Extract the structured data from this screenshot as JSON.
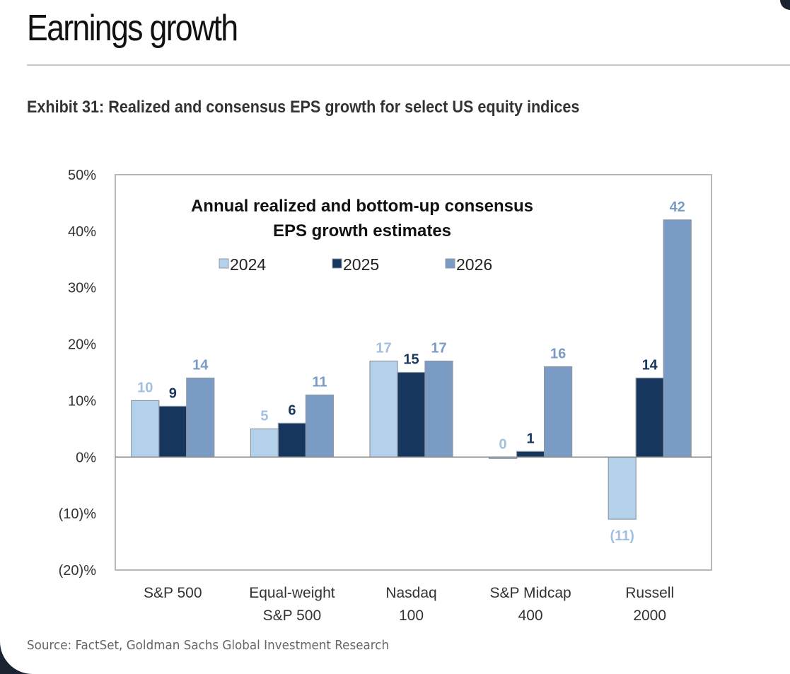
{
  "page": {
    "title": "Earnings growth",
    "exhibit_title": "Exhibit 31: Realized and consensus EPS growth for select US equity indices",
    "source": "Source: FactSet, Goldman Sachs Global Investment Research"
  },
  "chart_data": {
    "type": "bar",
    "title": "Annual realized and bottom-up consensus EPS growth estimates",
    "title_lines": [
      "Annual realized and bottom-up consensus",
      "EPS growth estimates"
    ],
    "xlabel": "",
    "ylabel": "",
    "ylim": [
      -20,
      50
    ],
    "yticks": [
      50,
      40,
      30,
      20,
      10,
      0,
      -10,
      -20
    ],
    "ytick_labels": [
      "50%",
      "40%",
      "30%",
      "20%",
      "10%",
      "0%",
      "(10)%",
      "(20)%"
    ],
    "grid": false,
    "legend_position": "top-center",
    "categories": [
      [
        "S&P 500"
      ],
      [
        "Equal-weight",
        "S&P 500"
      ],
      [
        "Nasdaq",
        "100"
      ],
      [
        "S&P Midcap",
        "400"
      ],
      [
        "Russell",
        "2000"
      ]
    ],
    "series": [
      {
        "name": "2024",
        "color": "#b4d1ec",
        "label_color": "#a3bfdf",
        "values": [
          10,
          5,
          17,
          0,
          -11
        ],
        "labels": [
          "10",
          "5",
          "17",
          "0",
          "(11)"
        ]
      },
      {
        "name": "2025",
        "color": "#17365d",
        "label_color": "#17365d",
        "values": [
          9,
          6,
          15,
          1,
          14
        ],
        "labels": [
          "9",
          "6",
          "15",
          "1",
          "14"
        ]
      },
      {
        "name": "2026",
        "color": "#7a9bc4",
        "label_color": "#7a9bc4",
        "values": [
          14,
          11,
          17,
          16,
          42
        ],
        "labels": [
          "14",
          "11",
          "17",
          "16",
          "42"
        ]
      }
    ]
  }
}
